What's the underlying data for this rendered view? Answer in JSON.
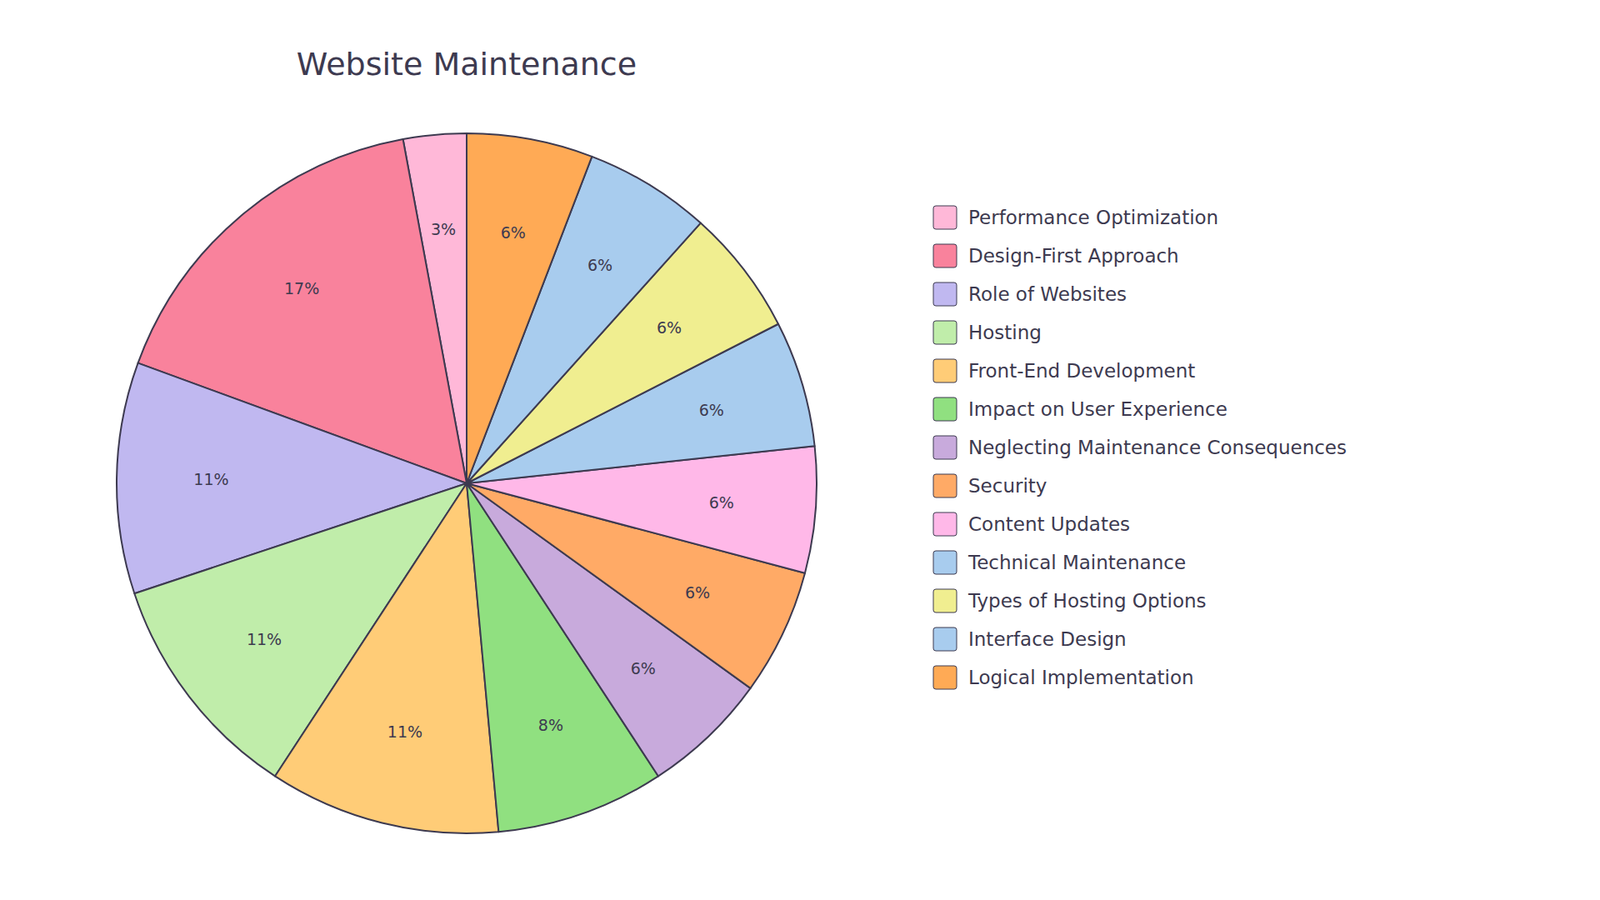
{
  "chart_data": {
    "type": "pie",
    "title": "Website Maintenance",
    "categories": [
      "Performance Optimization",
      "Design-First Approach",
      "Role of Websites",
      "Hosting",
      "Front-End Development",
      "Impact on User Experience",
      "Neglecting Maintenance Consequences",
      "Security",
      "Content Updates",
      "Technical Maintenance",
      "Types of Hosting Options",
      "Interface Design",
      "Logical Implementation"
    ],
    "values": [
      3,
      17,
      11,
      11,
      11,
      8,
      6,
      6,
      6,
      6,
      6,
      6,
      6
    ],
    "value_labels": [
      "3%",
      "17%",
      "11%",
      "11%",
      "11%",
      "8%",
      "6%",
      "6%",
      "6%",
      "6%",
      "6%",
      "6%",
      "6%"
    ],
    "colors": [
      "#FFB8D8",
      "#F9829C",
      "#C0B8F0",
      "#C0EDAA",
      "#FFCC77",
      "#90E080",
      "#C8AADC",
      "#FFAA66",
      "#FFB8E8",
      "#A8CCEE",
      "#F0EE90",
      "#A8CCEE",
      "#FFAA55"
    ],
    "data_labels": true,
    "legend": "right"
  }
}
